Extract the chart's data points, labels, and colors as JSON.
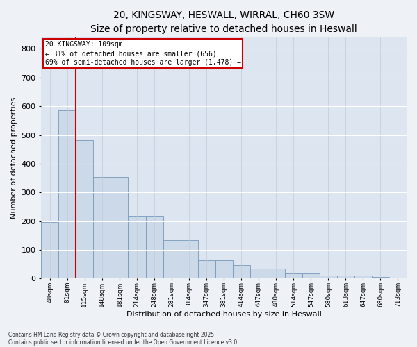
{
  "title": "20, KINGSWAY, HESWALL, WIRRAL, CH60 3SW",
  "subtitle": "Size of property relative to detached houses in Heswall",
  "xlabel": "Distribution of detached houses by size in Heswall",
  "ylabel": "Number of detached properties",
  "categories": [
    "48sqm",
    "81sqm",
    "115sqm",
    "148sqm",
    "181sqm",
    "214sqm",
    "248sqm",
    "281sqm",
    "314sqm",
    "347sqm",
    "381sqm",
    "414sqm",
    "447sqm",
    "480sqm",
    "514sqm",
    "547sqm",
    "580sqm",
    "613sqm",
    "647sqm",
    "680sqm",
    "713sqm"
  ],
  "values": [
    196,
    585,
    483,
    355,
    355,
    218,
    218,
    133,
    133,
    65,
    65,
    48,
    35,
    35,
    17,
    17,
    10,
    10,
    10,
    7,
    0
  ],
  "bar_color": "#ccd9e8",
  "bar_edgecolor": "#7799bb",
  "vline_color": "#cc0000",
  "vline_x_index": 1.5,
  "annotation_text": "20 KINGSWAY: 109sqm\n← 31% of detached houses are smaller (656)\n69% of semi-detached houses are larger (1,478) →",
  "ylim": [
    0,
    840
  ],
  "yticks": [
    0,
    100,
    200,
    300,
    400,
    500,
    600,
    700,
    800
  ],
  "footer": "Contains HM Land Registry data © Crown copyright and database right 2025.\nContains public sector information licensed under the Open Government Licence v3.0.",
  "bg_color": "#eef2f7",
  "plot_bg_color": "#dde6f0",
  "title_fontsize": 10,
  "subtitle_fontsize": 9,
  "xlabel_fontsize": 8,
  "ylabel_fontsize": 8,
  "xtick_fontsize": 6.5,
  "ytick_fontsize": 8,
  "annotation_fontsize": 7,
  "footer_fontsize": 5.5
}
